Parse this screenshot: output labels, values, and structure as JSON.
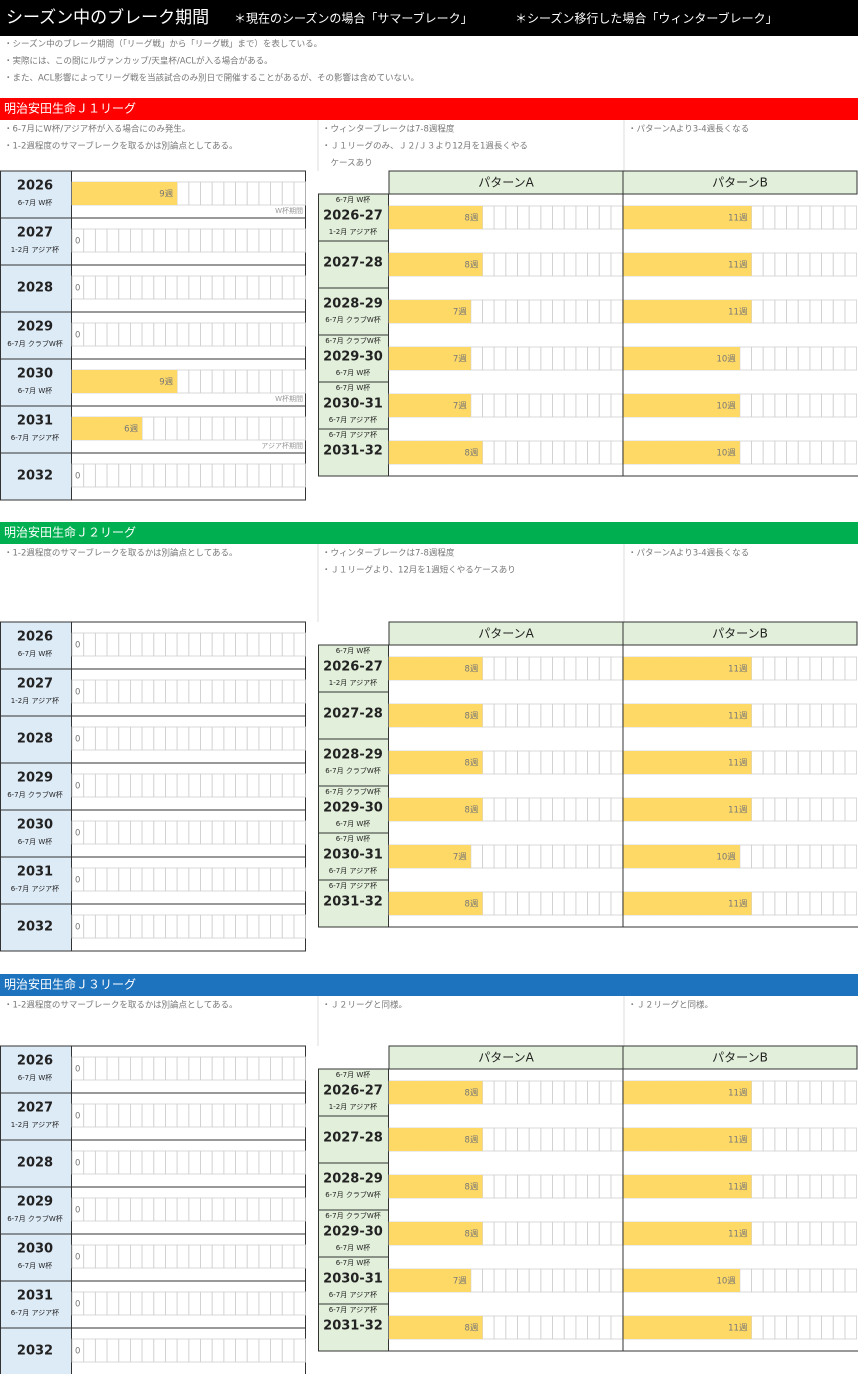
{
  "header": {
    "title": "シーズン中のブレーク期間",
    "note_summer": "＊現在のシーズンの場合「サマーブレーク」",
    "note_winter": "＊シーズン移行した場合「ウィンターブレーク」"
  },
  "notes": [
    "・シーズン中のブレーク期間（「リーグ戦」から「リーグ戦」まで）を表している。",
    "・実際には、この間にルヴァンカップ/天皇杯/ACLが入る場合がある。",
    "・また、ACL影響によってリーグ戦を当該試合のみ別日で開催することがあるが、その影響は含めていない。"
  ],
  "sections": [
    {
      "title": "明治安田生命Ｊ１リーグ",
      "color": "#ff0000",
      "summer_notes": [
        "・6-7月にW杯/アジア杯が入る場合にのみ発生。",
        "・1-2週程度のサマーブレークを取るかは別論点としてある。"
      ],
      "winter_notes": [
        "・ウィンターブレークは7-8週程度",
        "・Ｊ１リーグのみ、Ｊ２/Ｊ３より12月を1週長くやる",
        "　ケースあり"
      ],
      "pattern_notes": [
        "・パターンAより3-4週長くなる"
      ],
      "pattern_headers": [
        "パターンA",
        "パターンB"
      ],
      "summer_rows": [
        {
          "year": "2026",
          "event": "6-7月 W杯",
          "weeks": 9,
          "weeks_label": "9週",
          "period": "W杯期間"
        },
        {
          "year": "2027",
          "event": "1-2月 アジア杯",
          "weeks": 0
        },
        {
          "year": "2028",
          "weeks": 0
        },
        {
          "year": "2029",
          "event": "6-7月 クラブW杯",
          "weeks": 0
        },
        {
          "year": "2030",
          "event": "6-7月 W杯",
          "weeks": 9,
          "weeks_label": "9週",
          "period": "W杯期間"
        },
        {
          "year": "2031",
          "event": "6-7月 アジア杯",
          "weeks": 6,
          "weeks_label": "6週",
          "period": "アジア杯期間"
        },
        {
          "year": "2032",
          "weeks": 0
        }
      ],
      "winter_rows": [
        {
          "event_before": "6-7月 W杯",
          "season": "2026-27",
          "event_after": "1-2月 アジア杯",
          "pattern_a": 8,
          "pattern_a_label": "8週",
          "pattern_b": 11,
          "pattern_b_label": "11週"
        },
        {
          "season": "2027-28",
          "pattern_a": 8,
          "pattern_a_label": "8週",
          "pattern_b": 11,
          "pattern_b_label": "11週"
        },
        {
          "season": "2028-29",
          "event_after": "6-7月 クラブW杯",
          "pattern_a": 7,
          "pattern_a_label": "7週",
          "pattern_b": 11,
          "pattern_b_label": "11週"
        },
        {
          "event_before": "6-7月 クラブW杯",
          "season": "2029-30",
          "event_after": "6-7月 W杯",
          "pattern_a": 7,
          "pattern_a_label": "7週",
          "pattern_b": 10,
          "pattern_b_label": "10週"
        },
        {
          "event_before": "6-7月 W杯",
          "season": "2030-31",
          "event_after": "6-7月 アジア杯",
          "pattern_a": 7,
          "pattern_a_label": "7週",
          "pattern_b": 10,
          "pattern_b_label": "10週"
        },
        {
          "event_before": "6-7月 アジア杯",
          "season": "2031-32",
          "pattern_a": 8,
          "pattern_a_label": "8週",
          "pattern_b": 10,
          "pattern_b_label": "10週"
        }
      ]
    },
    {
      "title": "明治安田生命Ｊ２リーグ",
      "color": "#00b050",
      "summer_notes": [
        "・1-2週程度のサマーブレークを取るかは別論点としてある。"
      ],
      "winter_notes": [
        "・ウィンターブレークは7-8週程度",
        "・Ｊ１リーグより、12月を1週短くやるケースあり"
      ],
      "pattern_notes": [
        "・パターンAより3-4週長くなる"
      ],
      "pattern_headers": [
        "パターンA",
        "パターンB"
      ],
      "summer_rows": [
        {
          "year": "2026",
          "event": "6-7月 W杯",
          "weeks": 0
        },
        {
          "year": "2027",
          "event": "1-2月 アジア杯",
          "weeks": 0
        },
        {
          "year": "2028",
          "weeks": 0
        },
        {
          "year": "2029",
          "event": "6-7月 クラブW杯",
          "weeks": 0
        },
        {
          "year": "2030",
          "event": "6-7月 W杯",
          "weeks": 0
        },
        {
          "year": "2031",
          "event": "6-7月 アジア杯",
          "weeks": 0
        },
        {
          "year": "2032",
          "weeks": 0
        }
      ],
      "winter_rows": [
        {
          "event_before": "6-7月 W杯",
          "season": "2026-27",
          "event_after": "1-2月 アジア杯",
          "pattern_a": 8,
          "pattern_a_label": "8週",
          "pattern_b": 11,
          "pattern_b_label": "11週"
        },
        {
          "season": "2027-28",
          "pattern_a": 8,
          "pattern_a_label": "8週",
          "pattern_b": 11,
          "pattern_b_label": "11週"
        },
        {
          "season": "2028-29",
          "event_after": "6-7月 クラブW杯",
          "pattern_a": 8,
          "pattern_a_label": "8週",
          "pattern_b": 11,
          "pattern_b_label": "11週"
        },
        {
          "event_before": "6-7月 クラブW杯",
          "season": "2029-30",
          "event_after": "6-7月 W杯",
          "pattern_a": 8,
          "pattern_a_label": "8週",
          "pattern_b": 11,
          "pattern_b_label": "11週"
        },
        {
          "event_before": "6-7月 W杯",
          "season": "2030-31",
          "event_after": "6-7月 アジア杯",
          "pattern_a": 7,
          "pattern_a_label": "7週",
          "pattern_b": 10,
          "pattern_b_label": "10週"
        },
        {
          "event_before": "6-7月 アジア杯",
          "season": "2031-32",
          "pattern_a": 8,
          "pattern_a_label": "8週",
          "pattern_b": 11,
          "pattern_b_label": "11週"
        }
      ]
    },
    {
      "title": "明治安田生命Ｊ３リーグ",
      "color": "#1e73be",
      "summer_notes": [
        "・1-2週程度のサマーブレークを取るかは別論点としてある。"
      ],
      "winter_notes": [
        "・Ｊ２リーグと同様。"
      ],
      "pattern_notes": [
        "・Ｊ２リーグと同様。"
      ],
      "pattern_headers": [
        "パターンA",
        "パターンB"
      ],
      "summer_rows": [
        {
          "year": "2026",
          "event": "6-7月 W杯",
          "weeks": 0
        },
        {
          "year": "2027",
          "event": "1-2月 アジア杯",
          "weeks": 0
        },
        {
          "year": "2028",
          "weeks": 0
        },
        {
          "year": "2029",
          "event": "6-7月 クラブW杯",
          "weeks": 0
        },
        {
          "year": "2030",
          "event": "6-7月 W杯",
          "weeks": 0
        },
        {
          "year": "2031",
          "event": "6-7月 アジア杯",
          "weeks": 0
        },
        {
          "year": "2032",
          "weeks": 0
        }
      ],
      "winter_rows": [
        {
          "event_before": "6-7月 W杯",
          "season": "2026-27",
          "event_after": "1-2月 アジア杯",
          "pattern_a": 8,
          "pattern_a_label": "8週",
          "pattern_b": 11,
          "pattern_b_label": "11週"
        },
        {
          "season": "2027-28",
          "pattern_a": 8,
          "pattern_a_label": "8週",
          "pattern_b": 11,
          "pattern_b_label": "11週"
        },
        {
          "season": "2028-29",
          "event_after": "6-7月 クラブW杯",
          "pattern_a": 8,
          "pattern_a_label": "8週",
          "pattern_b": 11,
          "pattern_b_label": "11週"
        },
        {
          "event_before": "6-7月 クラブW杯",
          "season": "2029-30",
          "event_after": "6-7月 W杯",
          "pattern_a": 8,
          "pattern_a_label": "8週",
          "pattern_b": 11,
          "pattern_b_label": "11週"
        },
        {
          "event_before": "6-7月 W杯",
          "season": "2030-31",
          "event_after": "6-7月 アジア杯",
          "pattern_a": 7,
          "pattern_a_label": "7週",
          "pattern_b": 10,
          "pattern_b_label": "10週"
        },
        {
          "event_before": "6-7月 アジア杯",
          "season": "2031-32",
          "pattern_a": 8,
          "pattern_a_label": "8週",
          "pattern_b": 11,
          "pattern_b_label": "11週"
        }
      ]
    }
  ]
}
